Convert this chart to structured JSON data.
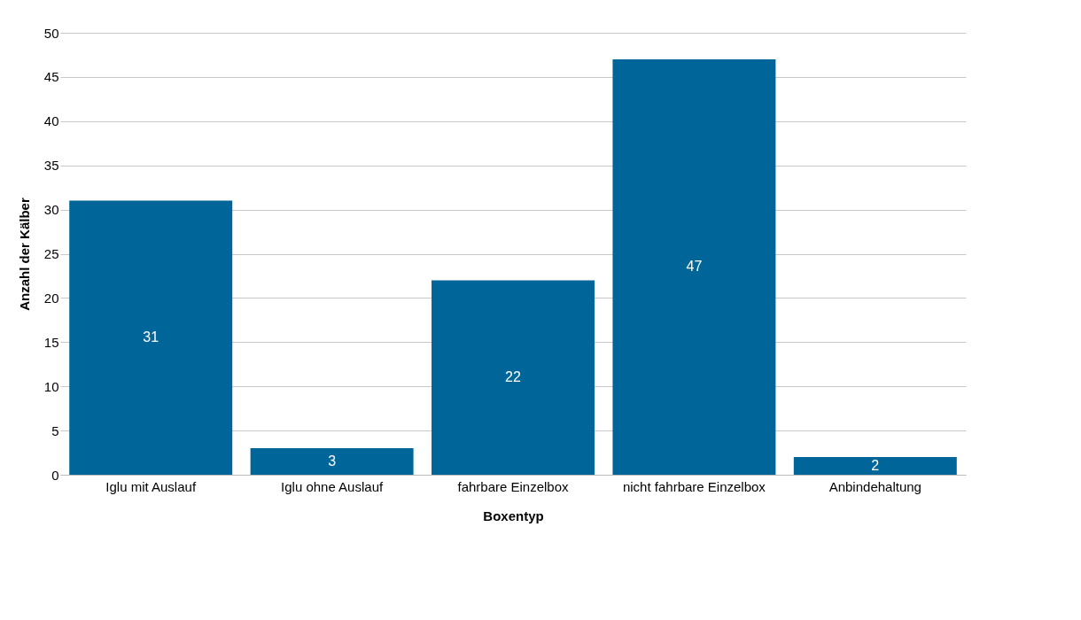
{
  "chart_data": {
    "type": "bar",
    "xlabel": "Boxentyp",
    "ylabel": "Anzahl der Kälber",
    "categories": [
      "Iglu mit Auslauf",
      "Iglu ohne Auslauf",
      "fahrbare Einzelbox",
      "nicht fahrbare Einzelbox",
      "Anbindehaltung"
    ],
    "values": [
      31,
      3,
      22,
      47,
      2
    ],
    "color": "#006699",
    "ylim": [
      0,
      50
    ],
    "yticks": [
      0,
      5,
      10,
      15,
      20,
      25,
      30,
      35,
      40,
      45,
      50
    ],
    "grid": "y",
    "data_labels": true
  }
}
